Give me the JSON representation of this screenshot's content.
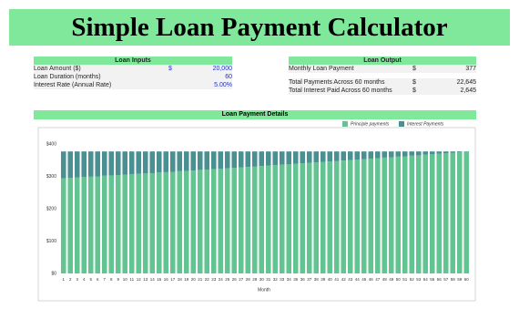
{
  "header": {
    "title": "Simple Loan Payment Calculator"
  },
  "loan_inputs": {
    "title": "Loan Inputs",
    "rows": [
      {
        "label": "Loan Amount ($)",
        "currency": "$",
        "value": "20,000"
      },
      {
        "label": "Loan Duration (months)",
        "value": "60"
      },
      {
        "label": "Interest Rate (Annual Rate)",
        "value": "5.00%"
      }
    ]
  },
  "loan_output": {
    "title": "Loan Output",
    "rows": [
      {
        "label": "Monthly Loan Payment",
        "currency": "$",
        "value": "377"
      },
      {
        "label": "Total Payments Across 60 months",
        "currency": "$",
        "value": "22,645"
      },
      {
        "label": "Total Interest Paid Across 60 months",
        "currency": "$",
        "value": "2,645"
      }
    ]
  },
  "details": {
    "title": "Loan Payment Details"
  },
  "chart_data": {
    "type": "stacked_bar",
    "x_label": "Month",
    "categories": [
      1,
      2,
      3,
      4,
      5,
      6,
      7,
      8,
      9,
      10,
      11,
      12,
      13,
      14,
      15,
      16,
      17,
      18,
      19,
      20,
      21,
      22,
      23,
      24,
      25,
      26,
      27,
      28,
      29,
      30,
      31,
      32,
      33,
      34,
      35,
      36,
      37,
      38,
      39,
      40,
      41,
      42,
      43,
      44,
      45,
      46,
      47,
      48,
      49,
      50,
      51,
      52,
      53,
      54,
      55,
      56,
      57,
      58,
      59,
      60
    ],
    "series": [
      {
        "name": "Principle payments",
        "color": "#62c591",
        "values": [
          294,
          295,
          297,
          298,
          299,
          300,
          302,
          303,
          304,
          305,
          307,
          308,
          309,
          310,
          312,
          313,
          314,
          316,
          317,
          318,
          320,
          321,
          322,
          324,
          325,
          326,
          328,
          329,
          330,
          332,
          333,
          335,
          336,
          337,
          339,
          340,
          342,
          343,
          345,
          346,
          347,
          349,
          350,
          352,
          353,
          355,
          356,
          358,
          359,
          361,
          362,
          364,
          365,
          367,
          368,
          370,
          371,
          373,
          374,
          376
        ]
      },
      {
        "name": "Interest Payments",
        "color": "#4a8f92",
        "values": [
          83,
          82,
          80,
          79,
          78,
          77,
          75,
          74,
          73,
          72,
          70,
          69,
          68,
          67,
          65,
          64,
          63,
          61,
          60,
          59,
          57,
          56,
          55,
          53,
          52,
          51,
          49,
          48,
          47,
          45,
          44,
          42,
          41,
          40,
          38,
          37,
          35,
          34,
          32,
          31,
          30,
          28,
          27,
          25,
          24,
          22,
          21,
          19,
          18,
          16,
          15,
          13,
          12,
          10,
          9,
          7,
          6,
          4,
          3,
          1
        ]
      }
    ],
    "ylim": [
      0,
      400
    ],
    "yticks": [
      {
        "value": 0,
        "label": "$0"
      },
      {
        "value": 100,
        "label": "$100"
      },
      {
        "value": 200,
        "label": "$200"
      },
      {
        "value": 300,
        "label": "$300"
      },
      {
        "value": 400,
        "label": "$400"
      }
    ],
    "grid": false,
    "legend": "top-right"
  }
}
